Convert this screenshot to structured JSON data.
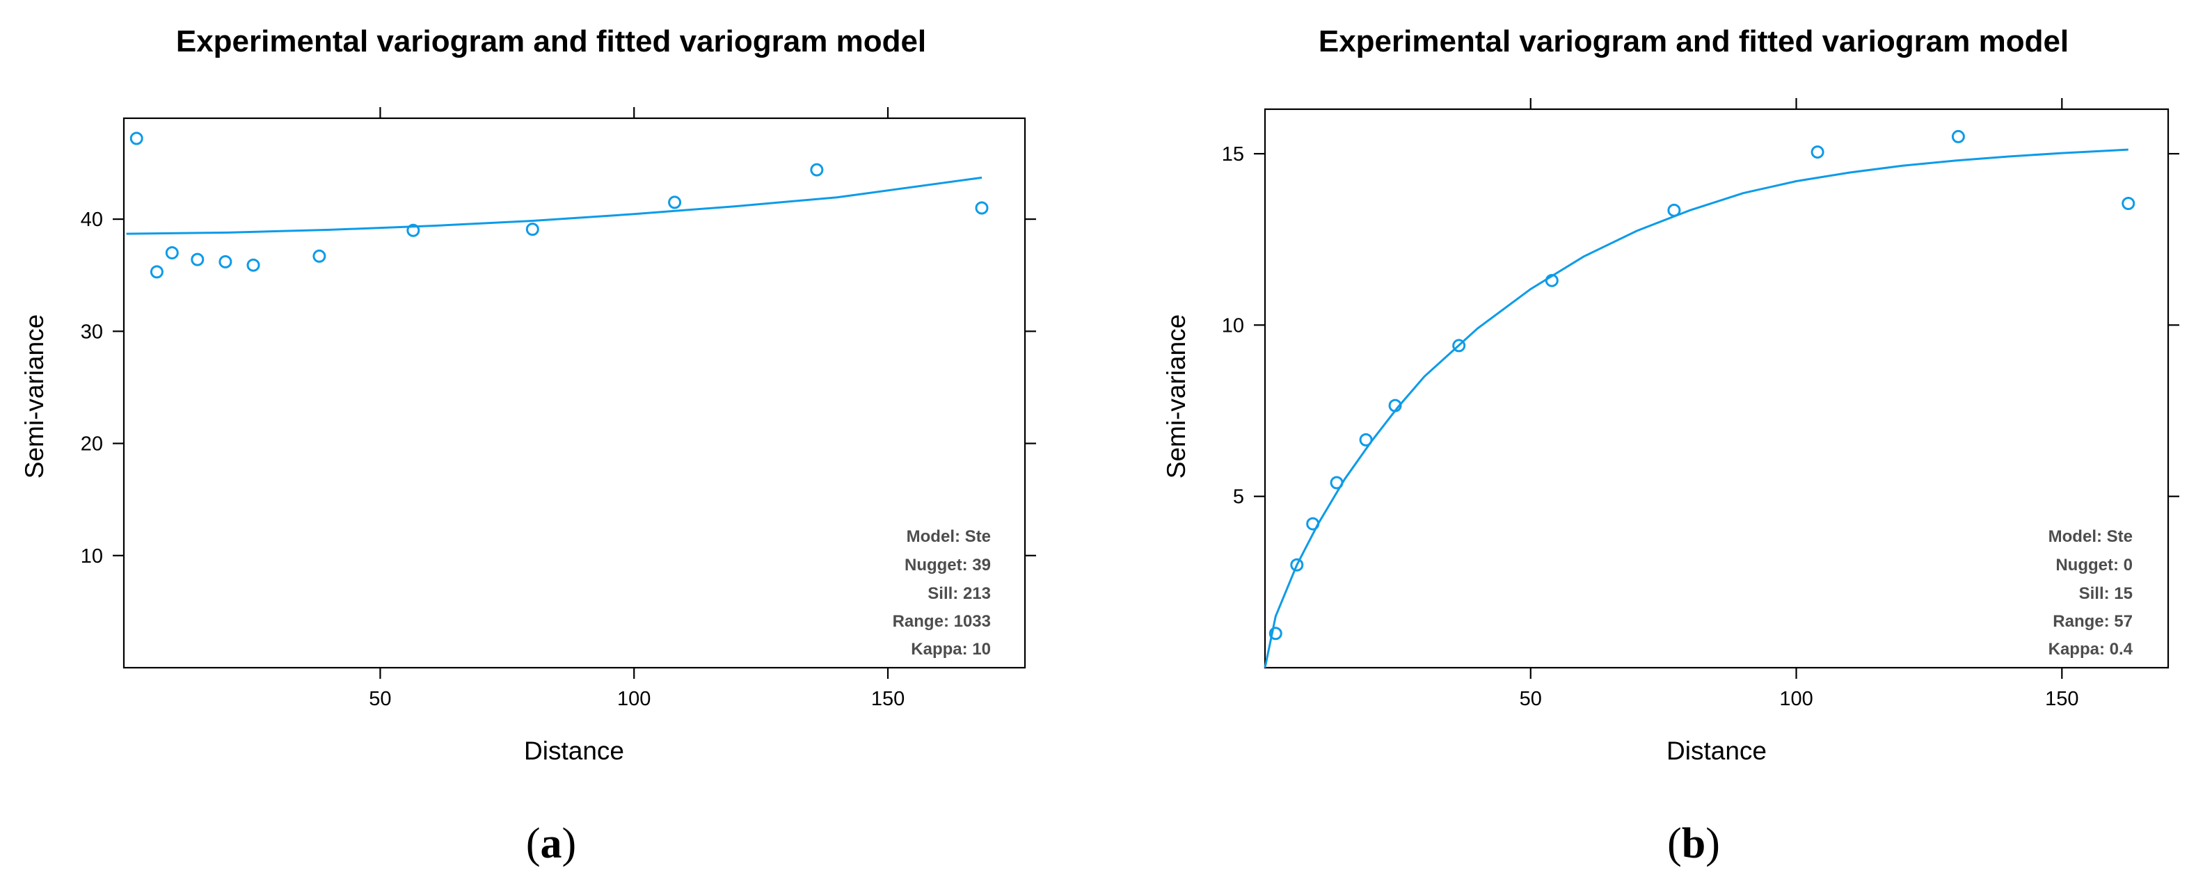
{
  "chart_data": [
    {
      "type": "scatter",
      "panel_label": "a",
      "title": "Experimental variogram and fitted variogram model",
      "xlabel": "Distance",
      "ylabel": "Semi-variance",
      "xlim": [
        -0.5,
        177
      ],
      "ylim": [
        0,
        49
      ],
      "xticks": [
        50,
        100,
        150
      ],
      "yticks": [
        10,
        20,
        30,
        40
      ],
      "points": {
        "x": [
          2,
          6,
          9,
          14,
          19.5,
          25,
          38,
          56.5,
          80,
          108,
          136,
          168.5
        ],
        "y": [
          47.2,
          35.3,
          37.0,
          36.4,
          36.2,
          35.9,
          36.7,
          39.0,
          39.1,
          41.5,
          44.4,
          41.0
        ]
      },
      "model": {
        "name": "Ste",
        "nugget": 39,
        "sill": 213,
        "range": 1033,
        "kappa": 10,
        "curve": {
          "x": [
            0,
            20,
            40,
            60,
            80,
            100,
            120,
            140,
            168.5
          ],
          "y": [
            38.7,
            38.8,
            39.05,
            39.4,
            39.85,
            40.45,
            41.15,
            41.95,
            43.7
          ]
        }
      },
      "annotations": [
        "Model: Ste",
        "Nugget: 39",
        "Sill: 213",
        "Range: 1033",
        "Kappa: 10"
      ]
    },
    {
      "type": "scatter",
      "panel_label": "b",
      "title": "Experimental variogram and fitted variogram model",
      "xlabel": "Distance",
      "ylabel": "Semi-variance",
      "xlim": [
        0,
        170
      ],
      "ylim": [
        0,
        16.3
      ],
      "xticks": [
        50,
        100,
        150
      ],
      "yticks": [
        5,
        10,
        15
      ],
      "points": {
        "x": [
          2,
          6,
          9,
          13.5,
          19,
          24.5,
          36.5,
          54,
          77,
          104,
          130.5,
          162.5
        ],
        "y": [
          1.0,
          3.0,
          4.2,
          5.4,
          6.65,
          7.65,
          9.4,
          11.3,
          13.35,
          15.05,
          15.5,
          13.55
        ]
      },
      "model": {
        "name": "Ste",
        "nugget": 0,
        "sill": 15,
        "range": 57,
        "kappa": 0.4,
        "curve": {
          "x": [
            0,
            2,
            6,
            10,
            15,
            20,
            25,
            30,
            40,
            50,
            60,
            70,
            80,
            90,
            100,
            110,
            120,
            130,
            140,
            150,
            160,
            162.5
          ],
          "y": [
            0,
            1.5,
            3.0,
            4.2,
            5.5,
            6.6,
            7.6,
            8.5,
            9.9,
            11.05,
            12.0,
            12.75,
            13.35,
            13.85,
            14.2,
            14.45,
            14.65,
            14.8,
            14.92,
            15.02,
            15.1,
            15.12
          ]
        }
      },
      "annotations": [
        "Model: Ste",
        "Nugget: 0",
        "Sill: 15",
        "Range: 57",
        "Kappa: 0.4"
      ]
    }
  ]
}
